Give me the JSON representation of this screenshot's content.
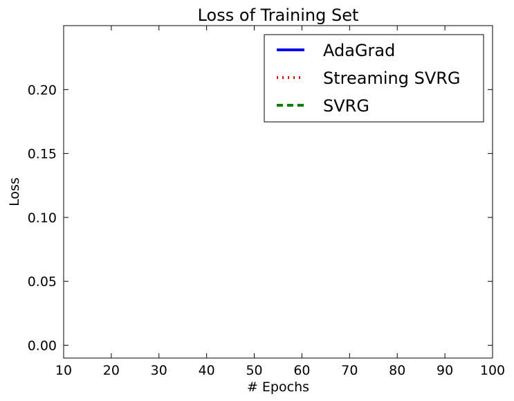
{
  "chart_data": {
    "type": "line",
    "title": "Loss of Training Set",
    "xlabel": "# Epochs",
    "ylabel": "Loss",
    "xlim": [
      10,
      100
    ],
    "ylim": [
      -0.01,
      0.25
    ],
    "x_ticks": [
      10,
      20,
      30,
      40,
      50,
      60,
      70,
      80,
      90,
      100
    ],
    "y_ticks": [
      0.0,
      0.05,
      0.1,
      0.15,
      0.2
    ],
    "x_tick_labels": [
      "10",
      "20",
      "30",
      "40",
      "50",
      "60",
      "70",
      "80",
      "90",
      "100"
    ],
    "y_tick_labels": [
      "0.00",
      "0.05",
      "0.10",
      "0.15",
      "0.20"
    ],
    "grid": false,
    "legend_position": "top-right",
    "series": [
      {
        "name": "AdaGrad",
        "color": "#0000ee",
        "style": "solid",
        "x": [],
        "y": []
      },
      {
        "name": "Streaming SVRG",
        "color": "#ee0000",
        "style": "dotted",
        "x": [],
        "y": []
      },
      {
        "name": "SVRG",
        "color": "#008000",
        "style": "dashed",
        "x": [],
        "y": []
      }
    ]
  }
}
